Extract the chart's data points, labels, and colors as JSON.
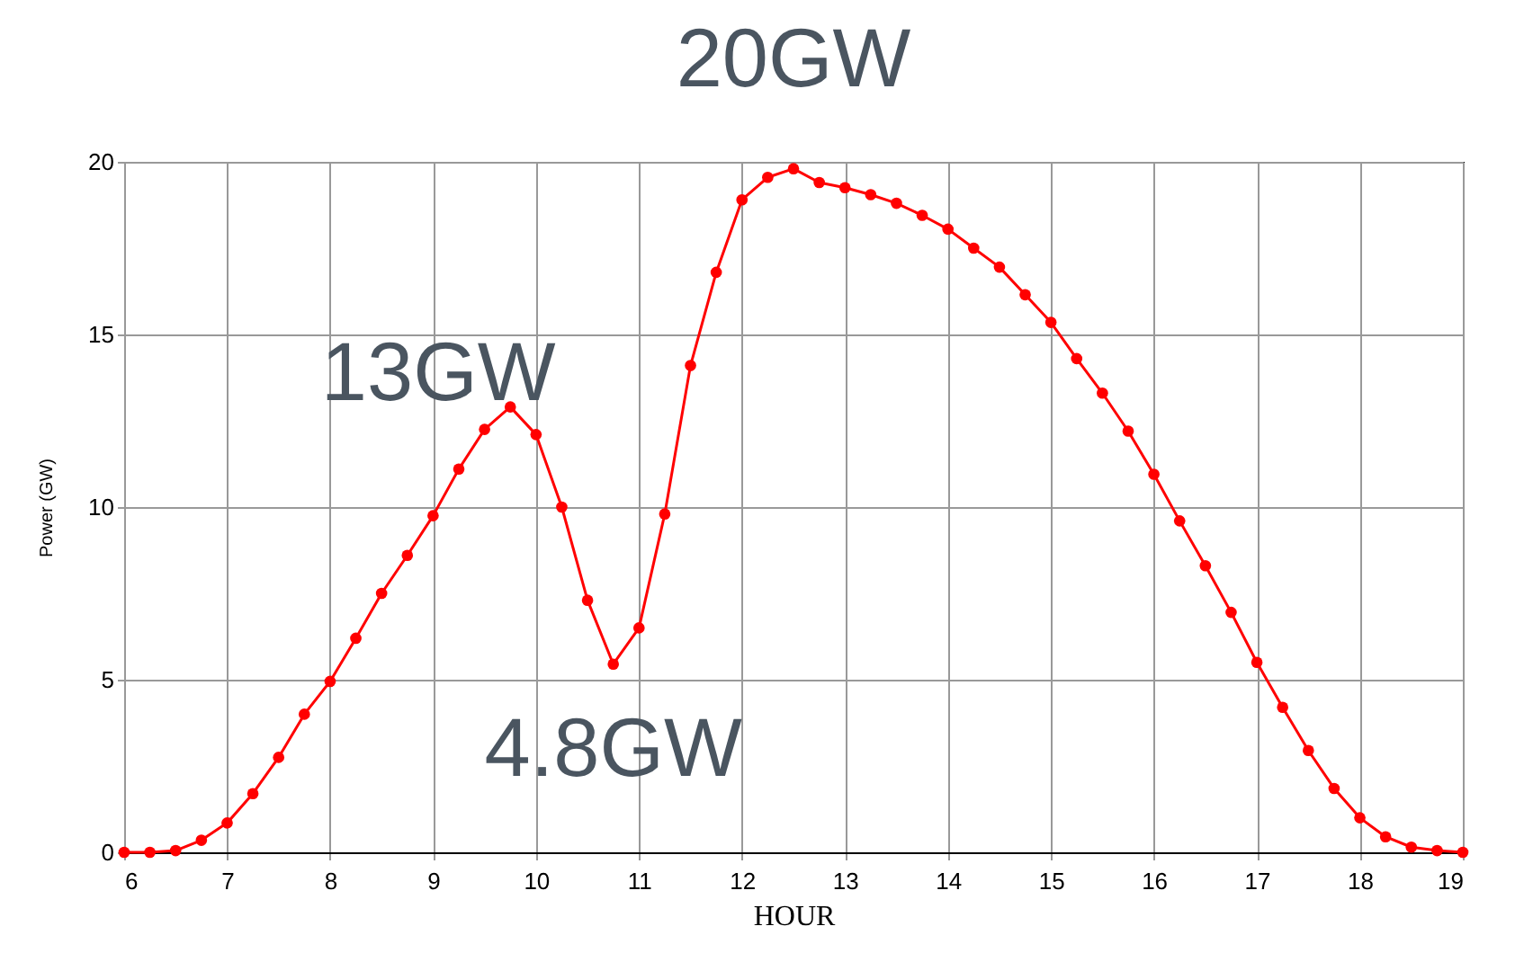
{
  "chart_data": {
    "type": "line",
    "xlabel": "HOUR",
    "ylabel": "Power (GW)",
    "x": [
      6,
      6.25,
      6.5,
      6.75,
      7,
      7.25,
      7.5,
      7.75,
      8,
      8.25,
      8.5,
      8.75,
      9,
      9.25,
      9.5,
      9.75,
      10,
      10.25,
      10.5,
      10.75,
      11,
      11.25,
      11.5,
      11.75,
      12,
      12.25,
      12.5,
      12.75,
      13,
      13.25,
      13.5,
      13.75,
      14,
      14.25,
      14.5,
      14.75,
      15,
      15.25,
      15.5,
      15.75,
      16,
      16.25,
      16.5,
      16.75,
      17,
      17.25,
      17.5,
      17.75,
      18,
      18.25,
      18.5,
      18.75,
      19
    ],
    "series": [
      {
        "color": "#ff0000",
        "values": [
          0,
          0,
          0.05,
          0.35,
          0.85,
          1.7,
          2.75,
          4.0,
          4.95,
          6.2,
          7.5,
          8.6,
          9.75,
          11.1,
          12.25,
          12.9,
          12.1,
          10.0,
          7.3,
          5.45,
          6.5,
          9.8,
          14.1,
          16.8,
          18.9,
          19.55,
          19.8,
          19.4,
          19.25,
          19.05,
          18.8,
          18.45,
          18.05,
          17.5,
          16.95,
          16.15,
          15.35,
          14.3,
          13.3,
          12.2,
          10.95,
          9.6,
          8.3,
          6.95,
          5.5,
          4.2,
          2.95,
          1.85,
          1.0,
          0.45,
          0.15,
          0.05,
          0
        ]
      }
    ],
    "xlim": [
      6,
      19
    ],
    "xticks": [
      6,
      7,
      8,
      9,
      10,
      11,
      12,
      13,
      14,
      15,
      16,
      17,
      18,
      19
    ],
    "ylim": [
      0,
      20
    ],
    "yticks": [
      0,
      5,
      10,
      15,
      20
    ],
    "grid": true,
    "marker": "circle",
    "line_style": "solid",
    "annotations": [
      {
        "text": "20GW",
        "x": 12.5,
        "y": 19.8
      },
      {
        "text": "13GW",
        "x": 9.75,
        "y": 12.9
      },
      {
        "text": "4.8GW",
        "x": 10.75,
        "y": 5.45
      }
    ]
  }
}
